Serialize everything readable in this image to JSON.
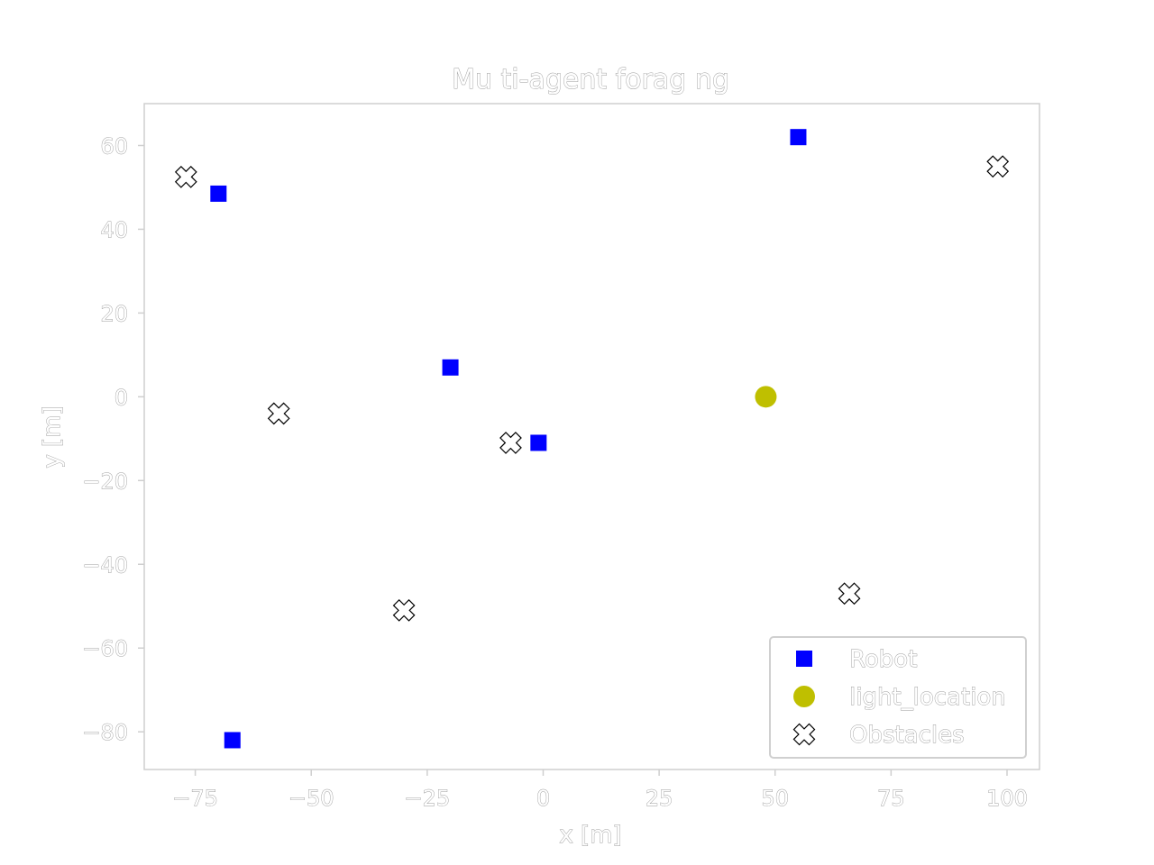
{
  "chart_data": {
    "type": "scatter",
    "title": "Mu ti-agent forag ng",
    "xlabel": "x [m]",
    "ylabel": "y [m]",
    "xlim": [
      -86,
      107
    ],
    "ylim": [
      -89,
      70
    ],
    "xticks": [
      -75,
      -50,
      -25,
      0,
      25,
      50,
      75,
      100
    ],
    "xtick_labels": [
      "−75",
      "−50",
      "−25",
      "0",
      "25",
      "50",
      "75",
      "100"
    ],
    "yticks": [
      60,
      40,
      20,
      0,
      -20,
      -40,
      -60,
      -80
    ],
    "ytick_labels": [
      "60",
      "40",
      "20",
      "0",
      "−20",
      "−40",
      "−60",
      "−80"
    ],
    "grid": false,
    "legend_position": "lower right",
    "series": [
      {
        "name": "Robot",
        "marker": "square",
        "color": "#0000ff",
        "points": [
          [
            55,
            62
          ],
          [
            -70,
            48.5
          ],
          [
            -20,
            7
          ],
          [
            -1,
            -11
          ],
          [
            -67,
            -82
          ]
        ]
      },
      {
        "name": "light_location",
        "marker": "circle",
        "color": "#bfbf00",
        "points": [
          [
            48,
            0
          ]
        ]
      },
      {
        "name": "Obstacles",
        "marker": "x-filled",
        "color": "#ffffff",
        "edgecolor": "#000000",
        "points": [
          [
            -77,
            52.5
          ],
          [
            -57,
            -4
          ],
          [
            -7,
            -11
          ],
          [
            98,
            55
          ],
          [
            -30,
            -51
          ],
          [
            66,
            -47
          ]
        ]
      }
    ]
  }
}
